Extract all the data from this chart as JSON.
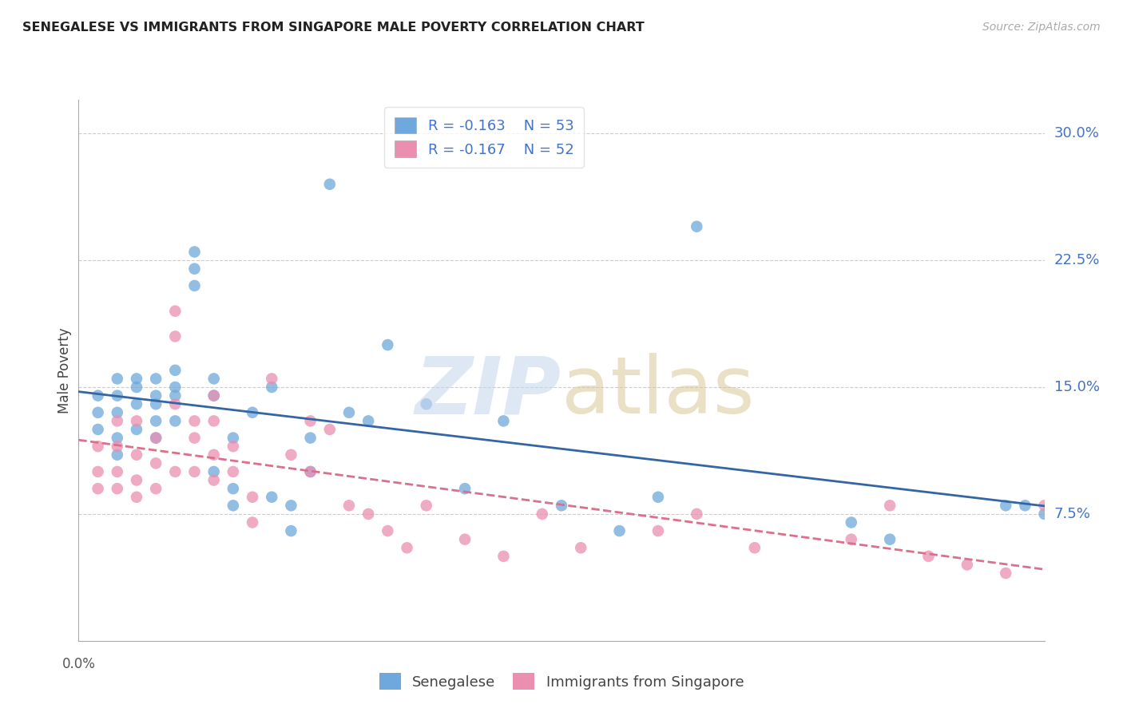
{
  "title": "SENEGALESE VS IMMIGRANTS FROM SINGAPORE MALE POVERTY CORRELATION CHART",
  "source": "Source: ZipAtlas.com",
  "ylabel": "Male Poverty",
  "right_ytick_labels": [
    "30.0%",
    "22.5%",
    "15.0%",
    "7.5%"
  ],
  "right_ytick_values": [
    0.3,
    0.225,
    0.15,
    0.075
  ],
  "xlim": [
    0.0,
    0.05
  ],
  "ylim": [
    0.0,
    0.32
  ],
  "blue_R": -0.163,
  "blue_N": 53,
  "pink_R": -0.167,
  "pink_N": 52,
  "blue_color": "#6fa8dc",
  "pink_color": "#ea8fb0",
  "blue_line_color": "#3465a4",
  "pink_line_color": "#d9708c",
  "legend_label_blue": "Senegalese",
  "legend_label_pink": "Immigrants from Singapore",
  "senegalese_x": [
    0.001,
    0.001,
    0.001,
    0.002,
    0.002,
    0.002,
    0.002,
    0.002,
    0.003,
    0.003,
    0.003,
    0.003,
    0.004,
    0.004,
    0.004,
    0.004,
    0.004,
    0.005,
    0.005,
    0.005,
    0.005,
    0.006,
    0.006,
    0.006,
    0.007,
    0.007,
    0.007,
    0.008,
    0.008,
    0.008,
    0.009,
    0.01,
    0.01,
    0.011,
    0.011,
    0.012,
    0.012,
    0.013,
    0.014,
    0.015,
    0.016,
    0.018,
    0.02,
    0.022,
    0.025,
    0.028,
    0.03,
    0.032,
    0.04,
    0.042,
    0.048,
    0.049,
    0.05
  ],
  "senegalese_y": [
    0.145,
    0.135,
    0.125,
    0.155,
    0.145,
    0.135,
    0.12,
    0.11,
    0.155,
    0.15,
    0.14,
    0.125,
    0.155,
    0.145,
    0.14,
    0.13,
    0.12,
    0.16,
    0.15,
    0.145,
    0.13,
    0.23,
    0.22,
    0.21,
    0.155,
    0.145,
    0.1,
    0.09,
    0.08,
    0.12,
    0.135,
    0.15,
    0.085,
    0.08,
    0.065,
    0.12,
    0.1,
    0.27,
    0.135,
    0.13,
    0.175,
    0.14,
    0.09,
    0.13,
    0.08,
    0.065,
    0.085,
    0.245,
    0.07,
    0.06,
    0.08,
    0.08,
    0.075
  ],
  "singapore_x": [
    0.001,
    0.001,
    0.001,
    0.002,
    0.002,
    0.002,
    0.002,
    0.003,
    0.003,
    0.003,
    0.003,
    0.004,
    0.004,
    0.004,
    0.005,
    0.005,
    0.005,
    0.005,
    0.006,
    0.006,
    0.006,
    0.007,
    0.007,
    0.007,
    0.007,
    0.008,
    0.008,
    0.009,
    0.009,
    0.01,
    0.011,
    0.012,
    0.012,
    0.013,
    0.014,
    0.015,
    0.016,
    0.017,
    0.018,
    0.02,
    0.022,
    0.024,
    0.026,
    0.03,
    0.032,
    0.035,
    0.04,
    0.042,
    0.044,
    0.046,
    0.048,
    0.05
  ],
  "singapore_y": [
    0.115,
    0.1,
    0.09,
    0.13,
    0.115,
    0.1,
    0.09,
    0.13,
    0.11,
    0.095,
    0.085,
    0.12,
    0.105,
    0.09,
    0.195,
    0.18,
    0.14,
    0.1,
    0.13,
    0.12,
    0.1,
    0.145,
    0.13,
    0.11,
    0.095,
    0.115,
    0.1,
    0.085,
    0.07,
    0.155,
    0.11,
    0.13,
    0.1,
    0.125,
    0.08,
    0.075,
    0.065,
    0.055,
    0.08,
    0.06,
    0.05,
    0.075,
    0.055,
    0.065,
    0.075,
    0.055,
    0.06,
    0.08,
    0.05,
    0.045,
    0.04,
    0.08
  ]
}
